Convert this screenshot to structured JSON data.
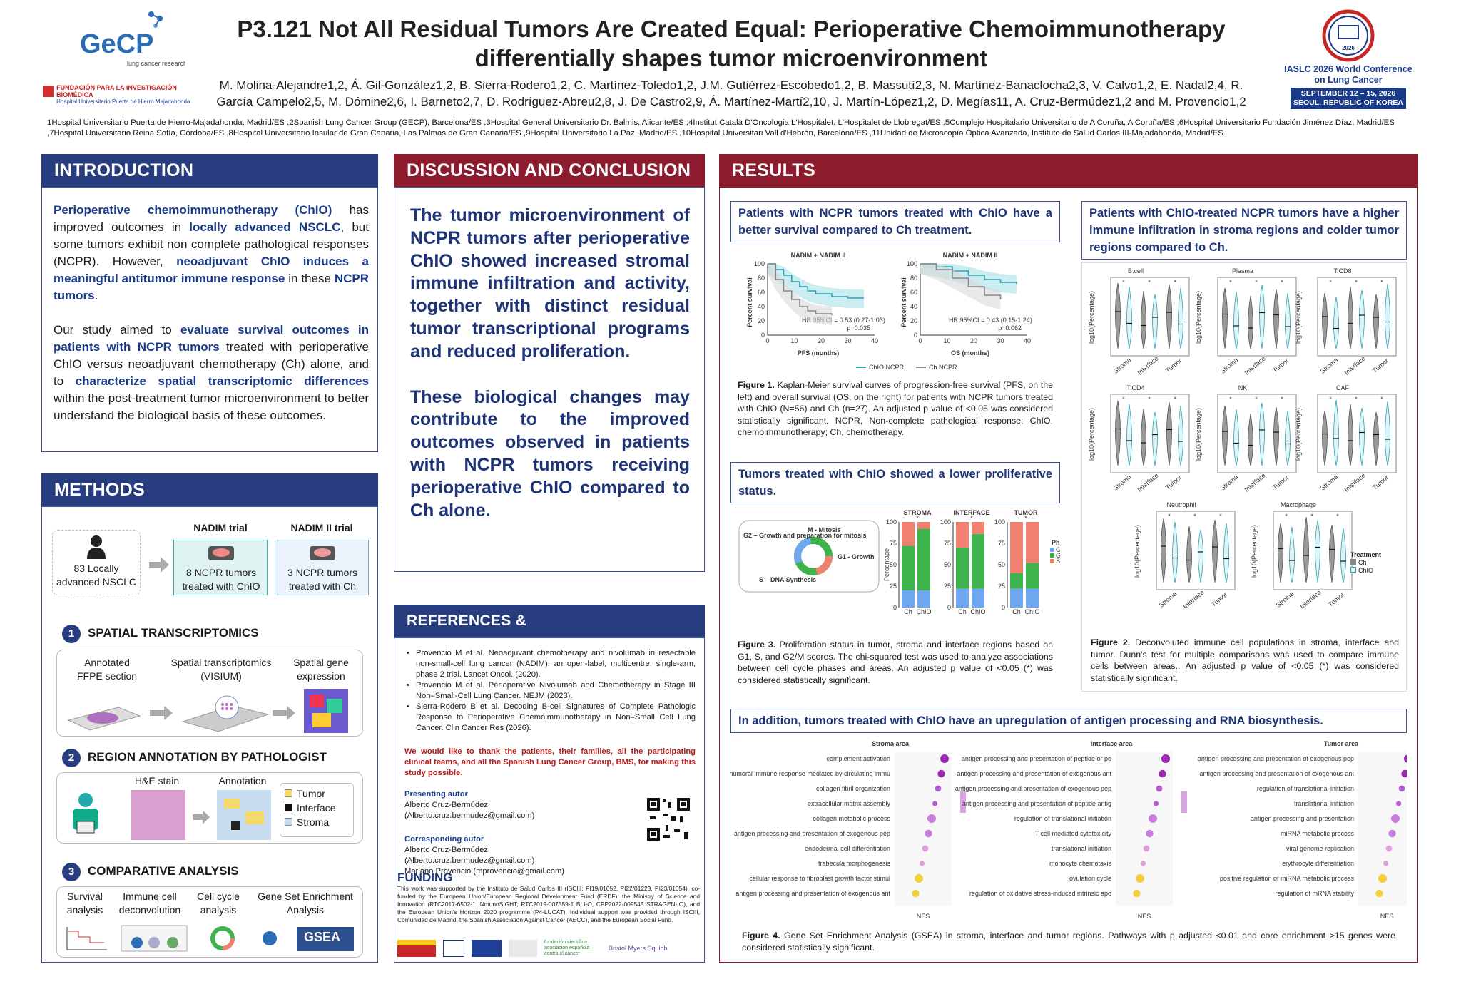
{
  "header": {
    "logo_text": "GeCP",
    "logo_sub": "lung cancer research",
    "foundation": "FUNDACIÓN PARA LA INVESTIGACIÓN BIOMÉDICA",
    "hospital": "Hospital Universitario Puerta de Hierro Majadahonda",
    "title_line1": "P3.121 Not All Residual Tumors Are Created Equal: Perioperative Chemoimmunotherapy",
    "title_line2": "differentially shapes tumor microenvironment",
    "authors": "M. Molina-Alejandre1,2, Á. Gil-González1,2, B. Sierra-Rodero1,2, C. Martínez-Toledo1,2, J.M. Gutiérrez-Escobedo1,2, B. Massutí2,3, N. Martínez-Banaclocha2,3, V. Calvo1,2, E. Nadal2,4, R. García Campelo2,5, M. Dómine2,6, I. Barneto2,7, D. Rodríguez-Abreu2,8, J. De Castro2,9, Á. Martínez-Martí2,10, J. Martín-López1,2, D. Megías11, A. Cruz-Bermúdez1,2 and M. Provencio1,2",
    "affiliations": "1Hospital Universitario Puerta de Hierro-Majadahonda, Madrid/ES ,2Spanish Lung Cancer Group (GECP), Barcelona/ES ,3Hospital General Universitario Dr. Balmis, Alicante/ES ,4Institut Català D'Oncologia L'Hospitalet, L'Hospitalet de Llobregat/ES ,5Complejo Hospitalario Universitario de A Coruña, A Coruña/ES ,6Hospital Universitario Fundación Jiménez Díaz, Madrid/ES ,7Hospital Universitario Reina Sofía, Córdoba/ES ,8Hospital Universitario Insular de Gran Canaria, Las Palmas de Gran Canaria/ES ,9Hospital Universitario La Paz, Madrid/ES ,10Hospital Universitari Vall d'Hebrón, Barcelona/ES ,11Unidad de Microscopía Óptica Avanzada, Instituto de Salud Carlos III-Majadahonda, Madrid/ES",
    "conf_year": "2026",
    "conf_name": "IASLC 2026 World Conference on Lung Cancer",
    "conf_dates": "SEPTEMBER 12 – 15, 2026",
    "conf_place": "SEOUL, REPUBLIC OF KOREA"
  },
  "intro": {
    "heading": "INTRODUCTION",
    "p1_a": "Perioperative chemoimmunotherapy (ChIO)",
    "p1_b": " has improved outcomes in ",
    "p1_c": "locally advanced NSCLC",
    "p1_d": ", but some tumors exhibit non complete pathological responses (NCPR). However, ",
    "p1_e": "neoadjuvant ChIO induces a meaningful antitumor immune response",
    "p1_f": " in these ",
    "p1_g": "NCPR tumors",
    "p1_h": ".",
    "p2_a": "Our study aimed to ",
    "p2_b": "evaluate survival outcomes in patients with NCPR tumors",
    "p2_c": " treated with perioperative ChIO versus neoadjuvant chemotherapy (Ch) alone, and to ",
    "p2_d": "characterize spatial transcriptomic differences",
    "p2_e": " within the post-treatment tumor microenvironment to better understand the biological basis of these outcomes."
  },
  "methods": {
    "heading": "METHODS",
    "patients": "83 Locally advanced NSCLC",
    "nadim": "NADIM trial",
    "nadim_box": "8 NCPR tumors treated with ChIO",
    "nadim2": "NADIM II trial",
    "nadim2_box": "3 NCPR tumors treated with Ch",
    "step1_num": "1",
    "step1": "SPATIAL TRANSCRIPTOMICS",
    "s1_a": "Annotated FFPE section",
    "s1_b": "Spatial transcriptomics (VISIUM)",
    "s1_c": "Spatial gene expression",
    "step2_num": "2",
    "step2": "REGION ANNOTATION BY PATHOLOGIST",
    "he": "H&E stain",
    "annot": "Annotation",
    "leg_tumor": "Tumor",
    "leg_interface": "Interface",
    "leg_stroma": "Stroma",
    "step3_num": "3",
    "step3": "COMPARATIVE ANALYSIS",
    "c1": "Survival analysis",
    "c2": "Immune cell deconvolution",
    "c3": "Cell cycle analysis",
    "c4": "Gene Set Enrichment Analysis",
    "gsea": "GSEA"
  },
  "discussion": {
    "heading": "DISCUSSION AND CONCLUSION",
    "p1": "The tumor microenvironment of NCPR tumors after perioperative ChIO showed increased stromal immune infiltration and activity, together with distinct residual tumor transcriptional programs and reduced proliferation.",
    "p2": "These biological changes may contribute to the improved outcomes observed in patients with NCPR tumors receiving perioperative ChIO compared to Ch alone."
  },
  "refs": {
    "heading": "REFERENCES & ACKNOWLEDGEMENTS",
    "r1": "Provencio M et al. Neoadjuvant chemotherapy and nivolumab in resectable non-small-cell lung cancer (NADIM): an open-label, multicentre, single-arm, phase 2 trial. Lancet Oncol. (2020).",
    "r2": "Provencio M et al. Perioperative Nivolumab and Chemotherapy in Stage III Non–Small-Cell Lung Cancer. NEJM (2023).",
    "r3": "Sierra-Rodero B et al. Decoding B-cell Signatures of Complete Pathologic Response to Perioperative Chemoimmunotherapy in Non–Small Cell Lung Cancer. Clin Cancer Res (2026).",
    "thanks": "We would like to thank the patients, their families, all the participating clinical teams, and all the Spanish Lung Cancer Group, BMS, for making this study possible.",
    "presenting_h": "Presenting autor",
    "presenting": "Alberto Cruz-Bermúdez (Alberto.cruz.bermudez@gmail.com)",
    "corr_h": "Corresponding autor",
    "corr1": "Alberto Cruz-Bermúdez (Alberto.cruz.bermudez@gmail.com)",
    "corr2": "Mariano Provencio (mprovencio@gmail.com)",
    "funding_h": "FUNDING",
    "funding": "This work was supported by the Instituto de Salud Carlos III (ISCIII; PI19/01652, PI22/01223, PI23/01054), co-funded by the European Union/European Regional Development Fund (ERDF), the Ministry of Science and Innovation (RTC2017-6502-1 INmunoSIGHT, RTC2019-007359-1 BLI-O, CPP2022-009545 STRAGEN-IO), and the European Union's Horizon 2020 programme (P4-LUCAT). Individual support was provided through ISCIII, Comunidad de Madrid, the Spanish Association Against Cancer (AECC), and the European Social Fund.",
    "f_logo1": "fundación científica asociación española contra el cáncer",
    "f_logo2": "Bristol Myers Squibb"
  },
  "results": {
    "heading": "RESULTS",
    "sub1": "Patients with NCPR tumors treated with ChIO have a better survival compared to Ch treatment.",
    "km1_title": "NADIM + NADIM II",
    "km1_xlabel": "PFS (months)",
    "km1_ylabel": "Percent survival",
    "km1_hr": "HR 95%CI = 0.53 (0.27-1.03)",
    "km1_p": "p=0.035",
    "km2_title": "NADIM + NADIM II",
    "km2_xlabel": "OS (months)",
    "km2_ylabel": "Percent survival",
    "km2_hr": "HR 95%CI = 0.43 (0.15-1.24)",
    "km2_p": "p=0.062",
    "leg_chio": "ChIO NCPR",
    "leg_ch": "Ch NCPR",
    "fig1_label": "Figure 1.",
    "fig1": " Kaplan-Meier survival curves of progression-free survival (PFS, on the left) and overall survival (OS, on the right) for patients with NCPR tumors treated with ChIO (N=56) and Ch (n=27). An adjusted p value of <0.05 was considered statistically significant. NCPR, Non-complete pathological response; ChIO, chemoimmunotherapy; Ch, chemotherapy.",
    "sub2": "Tumors treated with ChIO showed a lower proliferative status.",
    "cc_m": "M - Mitosis",
    "cc_g2": "G2 – Growth and preparation for mitosis",
    "cc_g1": "G1 - Growth",
    "cc_s": "S – DNA Synthesis",
    "bar_stroma": "STROMA",
    "bar_interface": "INTERFACE",
    "bar_tumor": "TUMOR",
    "bar_ylabel": "Percentage",
    "phase_h": "Phase",
    "fig3_label": "Figure 3.",
    "fig3": " Proliferation status in tumor, stroma and interface regions based on G1, S, and G2/M scores. The chi-squared test was used to analyze associations between cell cycle phases and áreas. An adjusted p value of <0.05 (*) was considered statistically significant.",
    "sub3": "Patients with ChIO-treated NCPR tumors have a higher immune infiltration in stroma regions and colder tumor regions compared to Ch.",
    "violin_ylabel": "log10(Percentage)",
    "violin_panels": [
      "B.cell",
      "Plasma",
      "T.CD8",
      "T.CD4",
      "NK",
      "CAF",
      "Neutrophil",
      "Macrophage"
    ],
    "violin_x": [
      "Stroma",
      "Interface",
      "Tumor"
    ],
    "treat_h": "Treatment",
    "treat_ch": "Ch",
    "treat_chio": "ChIO",
    "fig2_label": "Figure 2.",
    "fig2": " Deconvoluted immune cell populations in stroma, interface and tumor. Dunn's test for multiple comparisons was used to compare immune cells between areas.. An adjusted p value of <0.05 (*) was considered statistically significant.",
    "sub4": "In addition, tumors treated with ChIO have an upregulation of antigen processing and RNA biosynthesis.",
    "gsea_stroma": "Stroma area",
    "gsea_interface": "Interface area",
    "gsea_tumor": "Tumor area",
    "fig4_label": "Figure 4.",
    "fig4": " Gene Set Enrichment Analysis (GSEA) in stroma, interface and tumor regions. Pathways with p adjusted <0.01 and core enrichment >15 genes were considered statistically significant."
  },
  "chart_data": [
    {
      "type": "line",
      "title": "NADIM + NADIM II",
      "xlabel": "PFS (months)",
      "ylabel": "Percent survival",
      "xlim": [
        0,
        40
      ],
      "ylim": [
        0,
        100
      ],
      "series": [
        {
          "name": "ChIO NCPR",
          "x": [
            0,
            3,
            6,
            9,
            12,
            15,
            18,
            24,
            30,
            36
          ],
          "y": [
            100,
            92,
            84,
            75,
            68,
            62,
            58,
            54,
            52,
            52
          ]
        },
        {
          "name": "Ch NCPR",
          "x": [
            0,
            3,
            6,
            9,
            12,
            15,
            18,
            24
          ],
          "y": [
            100,
            78,
            62,
            50,
            40,
            34,
            30,
            28
          ]
        }
      ]
    },
    {
      "type": "line",
      "title": "NADIM + NADIM II",
      "xlabel": "OS (months)",
      "ylabel": "Percent survival",
      "xlim": [
        0,
        40
      ],
      "ylim": [
        0,
        100
      ],
      "series": [
        {
          "name": "ChIO NCPR",
          "x": [
            0,
            6,
            12,
            18,
            24,
            30,
            36
          ],
          "y": [
            100,
            96,
            90,
            84,
            78,
            74,
            72
          ]
        },
        {
          "name": "Ch NCPR",
          "x": [
            0,
            6,
            12,
            18,
            24,
            30
          ],
          "y": [
            100,
            92,
            80,
            68,
            56,
            50
          ]
        }
      ]
    },
    {
      "type": "bar",
      "title": "STROMA",
      "categories": [
        "Ch",
        "ChIO"
      ],
      "ylabel": "Percentage",
      "series": [
        {
          "name": "G1",
          "values": [
            20,
            20
          ]
        },
        {
          "name": "G2M",
          "values": [
            52,
            72
          ]
        },
        {
          "name": "S",
          "values": [
            28,
            8
          ]
        }
      ]
    },
    {
      "type": "bar",
      "title": "INTERFACE",
      "categories": [
        "Ch",
        "ChIO"
      ],
      "ylabel": "Percentage",
      "series": [
        {
          "name": "G1",
          "values": [
            22,
            22
          ]
        },
        {
          "name": "G2M",
          "values": [
            48,
            64
          ]
        },
        {
          "name": "S",
          "values": [
            30,
            14
          ]
        }
      ]
    },
    {
      "type": "bar",
      "title": "TUMOR",
      "categories": [
        "Ch",
        "ChIO"
      ],
      "ylabel": "Percentage",
      "series": [
        {
          "name": "G1",
          "values": [
            22,
            22
          ]
        },
        {
          "name": "G2M",
          "values": [
            18,
            30
          ]
        },
        {
          "name": "S",
          "values": [
            60,
            48
          ]
        }
      ]
    }
  ],
  "gsea": {
    "stroma": [
      "complement activation",
      "humoral immune response mediated by circulating immunoglobulin",
      "collagen fibril organization",
      "extracellular matrix assembly",
      "collagen metabolic process",
      "antigen processing and presentation of exogenous peptide antigen",
      "endodermal cell differentiation",
      "trabecula morphogenesis",
      "cellular response to fibroblast growth factor stimulus",
      "antigen processing and presentation of exogenous antigen"
    ],
    "interface": [
      "antigen processing and presentation of peptide or polysaccharide antigen via MHC class II",
      "antigen processing and presentation of exogenous antigen",
      "antigen processing and presentation of exogenous peptide antigen",
      "antigen processing and presentation of peptide antigen",
      "regulation of translational initiation",
      "T cell mediated cytotoxicity",
      "translational initiation",
      "monocyte chemotaxis",
      "ovulation cycle",
      "regulation of oxidative stress-induced intrinsic apoptotic signaling pathway"
    ],
    "tumor": [
      "antigen processing and presentation of exogenous peptide antigen",
      "antigen processing and presentation of exogenous antigen",
      "regulation of translational initiation",
      "translational initiation",
      "antigen processing and presentation",
      "miRNA metabolic process",
      "viral genome replication",
      "erythrocyte differentiation",
      "positive regulation of miRNA metabolic process",
      "regulation of mRNA stability"
    ]
  },
  "colors": {
    "blue_head": "#283c80",
    "red_head": "#8c1c2d",
    "g1": "#6fa8f0",
    "g2m": "#3cb44b",
    "s": "#f08070"
  }
}
